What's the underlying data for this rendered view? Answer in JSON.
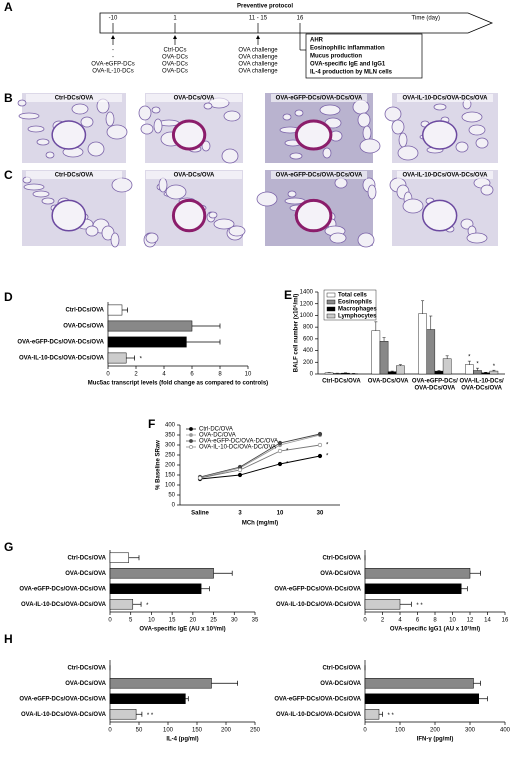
{
  "timeline": {
    "label": "A",
    "title": "Preventive protocol",
    "axis_label": "Time (day)",
    "days": [
      {
        "day": "-10",
        "treatments": [
          "-",
          "-",
          "OVA-eGFP-DCs",
          "OVA-IL-10-DCs"
        ]
      },
      {
        "day": "1",
        "treatments": [
          "Ctrl-DCs",
          "OVA-DCs",
          "OVA-DCs",
          "OVA-DCs"
        ]
      },
      {
        "day": "11 - 15",
        "treatments": [
          "OVA challenge",
          "OVA challenge",
          "OVA challenge",
          "OVA challenge"
        ]
      },
      {
        "day": "16",
        "treatments": [
          "AHR",
          "Eosinophilic inflammation",
          "Mucus production",
          "OVA-specific IgE and IgG1",
          "IL-4 production by MLN cells"
        ]
      }
    ]
  },
  "histology": [
    {
      "label": "B",
      "captions": [
        "Ctrl-DCs/OVA",
        "OVA-DCs/OVA",
        "OVA-eGFP-DCs/OVA-DCs/OVA",
        "OVA-IL-10-DCs/OVA-DCs/OVA"
      ]
    },
    {
      "label": "C",
      "captions": [
        "Ctrl-DCs/OVA",
        "OVA-DCs/OVA",
        "OVA-eGFP-DCs/OVA-DCs/OVA",
        "OVA-IL-10-DCs/OVA-DCs/OVA"
      ]
    }
  ],
  "chart_data": [
    {
      "type": "bar",
      "orientation": "horizontal",
      "label": "D",
      "x_label": "Muc5ac transcript levels (fold change as compared to controls)",
      "categories": [
        "Ctrl-DCs/OVA",
        "OVA-DCs/OVA",
        "OVA-eGFP-DCs/OVA-DCs/OVA",
        "OVA-IL-10-DCs/OVA-DCs/OVA"
      ],
      "values": [
        1,
        6,
        5.6,
        1.3
      ],
      "errors": [
        0.4,
        2,
        2.4,
        0.6
      ],
      "significance": [
        null,
        null,
        null,
        "*"
      ],
      "colors": [
        "#ffffff",
        "#888888",
        "#000000",
        "#cccccc"
      ],
      "xlim": [
        0,
        10
      ],
      "xticks": [
        0,
        2,
        4,
        6,
        8,
        10
      ]
    },
    {
      "type": "grouped_bar",
      "label": "E",
      "y_label": "BALF cell number (x10⁵/ml)",
      "categories": [
        [
          "Ctrl-DCs/OVA"
        ],
        [
          "OVA-DCs/OVA"
        ],
        [
          "OVA-eGFP-DCs/",
          "OVA-DCs/OVA"
        ],
        [
          "OVA-IL-10-DCs/",
          "OVA-DCs/OVA"
        ]
      ],
      "series": [
        {
          "name": "Total cells",
          "color": "#ffffff",
          "values": [
            20,
            740,
            1030,
            160
          ],
          "errors": [
            5,
            150,
            220,
            60
          ],
          "significance": [
            null,
            null,
            null,
            "*"
          ]
        },
        {
          "name": "Eosinophils",
          "color": "#888888",
          "values": [
            10,
            560,
            760,
            60
          ],
          "errors": [
            5,
            60,
            230,
            40
          ],
          "significance": [
            null,
            null,
            null,
            "*"
          ]
        },
        {
          "name": "Macrophages",
          "color": "#000000",
          "values": [
            15,
            40,
            50,
            20
          ],
          "errors": [
            5,
            10,
            10,
            10
          ],
          "significance": [
            null,
            null,
            null,
            null
          ]
        },
        {
          "name": "Lymphocytes",
          "color": "#cccccc",
          "values": [
            5,
            140,
            260,
            50
          ],
          "errors": [
            5,
            20,
            50,
            15
          ],
          "significance": [
            null,
            null,
            null,
            "*"
          ]
        }
      ],
      "ylim": [
        0,
        1400
      ],
      "yticks": [
        0,
        200,
        400,
        600,
        800,
        1000,
        1200,
        1400
      ]
    },
    {
      "type": "line",
      "label": "F",
      "x_label": "MCh (mg/ml)",
      "y_label": "% Baseline SRaw",
      "categories": [
        "Saline",
        "3",
        "10",
        "30"
      ],
      "series": [
        {
          "name": "Ctrl-DC/OVA",
          "color": "#000000",
          "values": [
            130,
            150,
            205,
            245
          ],
          "significance": [
            null,
            null,
            "*",
            "*"
          ]
        },
        {
          "name": "OVA-DC/OVA",
          "color": "#999999",
          "values": [
            135,
            185,
            300,
            350
          ],
          "significance": [
            null,
            null,
            null,
            null
          ]
        },
        {
          "name": "OVA-eGFP-DC/OVA-DC/OVA",
          "color": "#444444",
          "values": [
            140,
            190,
            310,
            355
          ],
          "significance": [
            null,
            null,
            null,
            null
          ]
        },
        {
          "name": "OVA-IL-10-DC/OVA-DC/OVA",
          "color": "#777777",
          "values": [
            135,
            175,
            270,
            300
          ],
          "significance": [
            null,
            null,
            "*",
            "*"
          ]
        }
      ],
      "ylim": [
        0,
        400
      ],
      "yticks": [
        0,
        50,
        100,
        150,
        200,
        250,
        300,
        350,
        400
      ]
    },
    {
      "type": "bar",
      "orientation": "horizontal",
      "label": "G",
      "x_label": "OVA-specific IgE (AU x 10³/ml)",
      "categories": [
        "Ctrl-DCs/OVA",
        "OVA-DCs/OVA",
        "OVA-eGFP-DCs/OVA-DCs/OVA",
        "OVA-IL-10-DCs/OVA-DCs/OVA"
      ],
      "values": [
        4.5,
        25,
        22,
        5.5
      ],
      "errors": [
        2.5,
        4.5,
        2,
        2
      ],
      "significance": [
        null,
        null,
        null,
        "*"
      ],
      "colors": [
        "#ffffff",
        "#888888",
        "#000000",
        "#cccccc"
      ],
      "xlim": [
        0,
        35
      ],
      "xticks": [
        0,
        5,
        10,
        15,
        20,
        25,
        30,
        35
      ]
    },
    {
      "type": "bar",
      "orientation": "horizontal",
      "x_label": "OVA-specific IgG1 (AU x 10³/ml)",
      "categories": [
        "Ctrl-DCs/OVA",
        "OVA-DCs/OVA",
        "OVA-eGFP-DCs/OVA-DCs/OVA",
        "OVA-IL-10-DCs/OVA-DCs/OVA"
      ],
      "values": [
        0,
        12,
        11,
        4
      ],
      "errors": [
        0,
        1.2,
        0.7,
        1.3
      ],
      "significance": [
        null,
        null,
        null,
        "* *"
      ],
      "colors": [
        "#ffffff",
        "#888888",
        "#000000",
        "#cccccc"
      ],
      "xlim": [
        0,
        16
      ],
      "xticks": [
        0,
        2,
        4,
        6,
        8,
        10,
        12,
        14,
        16
      ]
    },
    {
      "type": "bar",
      "orientation": "horizontal",
      "label": "H",
      "x_label": "IL-4 (pg/ml)",
      "categories": [
        "Ctrl-DCs/OVA",
        "OVA-DCs/OVA",
        "OVA-eGFP-DCs/OVA-DCs/OVA",
        "OVA-IL-10-DCs/OVA-DCs/OVA"
      ],
      "values": [
        0,
        175,
        130,
        45
      ],
      "errors": [
        0,
        45,
        5,
        10
      ],
      "significance": [
        null,
        null,
        null,
        "* *"
      ],
      "colors": [
        "#ffffff",
        "#888888",
        "#000000",
        "#cccccc"
      ],
      "xlim": [
        0,
        250
      ],
      "xticks": [
        0,
        50,
        100,
        150,
        200,
        250
      ]
    },
    {
      "type": "bar",
      "orientation": "horizontal",
      "x_label": "IFN-γ (pg/ml)",
      "categories": [
        "Ctrl-DCs/OVA",
        "OVA-DCs/OVA",
        "OVA-eGFP-DCs/OVA-DCs/OVA",
        "OVA-IL-10-DCs/OVA-DCs/OVA"
      ],
      "values": [
        0,
        310,
        325,
        40
      ],
      "errors": [
        0,
        20,
        25,
        10
      ],
      "significance": [
        null,
        null,
        null,
        "* *"
      ],
      "colors": [
        "#ffffff",
        "#888888",
        "#000000",
        "#cccccc"
      ],
      "xlim": [
        0,
        400
      ],
      "xticks": [
        0,
        100,
        200,
        300,
        400
      ]
    }
  ]
}
